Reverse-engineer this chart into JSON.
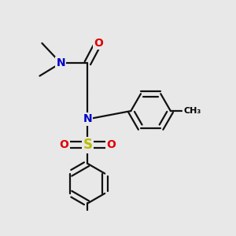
{
  "bg_color": "#e8e8e8",
  "fig_size": [
    3.0,
    3.0
  ],
  "dpi": 100,
  "atom_colors": {
    "C": "#000000",
    "N": "#0000cc",
    "O": "#dd0000",
    "S": "#bbbb00",
    "H": "#000000"
  },
  "bond_color": "#111111",
  "bond_width": 1.6,
  "font_size_atoms": 10,
  "font_size_methyl": 8
}
